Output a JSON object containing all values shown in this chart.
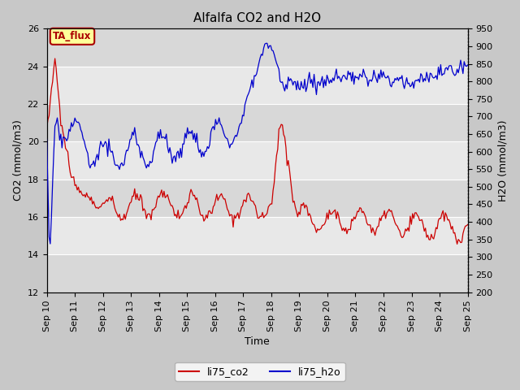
{
  "title": "Alfalfa CO2 and H2O",
  "xlabel": "Time",
  "ylabel_left": "CO2 (mmol/m3)",
  "ylabel_right": "H2O (mmol/m3)",
  "ylim_left": [
    12,
    26
  ],
  "ylim_right": [
    200,
    950
  ],
  "yticks_left": [
    12,
    14,
    16,
    18,
    20,
    22,
    24,
    26
  ],
  "yticks_right": [
    200,
    250,
    300,
    350,
    400,
    450,
    500,
    550,
    600,
    650,
    700,
    750,
    800,
    850,
    900,
    950
  ],
  "xtick_labels": [
    "Sep 10",
    "Sep 11",
    "Sep 12",
    "Sep 13",
    "Sep 14",
    "Sep 15",
    "Sep 16",
    "Sep 17",
    "Sep 18",
    "Sep 19",
    "Sep 20",
    "Sep 21",
    "Sep 22",
    "Sep 23",
    "Sep 24",
    "Sep 25"
  ],
  "color_co2": "#cc0000",
  "color_h2o": "#0000cc",
  "legend_label_co2": "li75_co2",
  "legend_label_h2o": "li75_h2o",
  "annotation_text": "TA_flux",
  "annotation_color": "#aa0000",
  "annotation_bg": "#ffff99",
  "background_color": "#c8c8c8",
  "plot_bg": "#e8e8e8",
  "band_color_dark": "#d8d8d8",
  "band_color_light": "#e8e8e8",
  "grid_color": "#ffffff",
  "title_fontsize": 11,
  "tick_fontsize": 8,
  "label_fontsize": 9
}
